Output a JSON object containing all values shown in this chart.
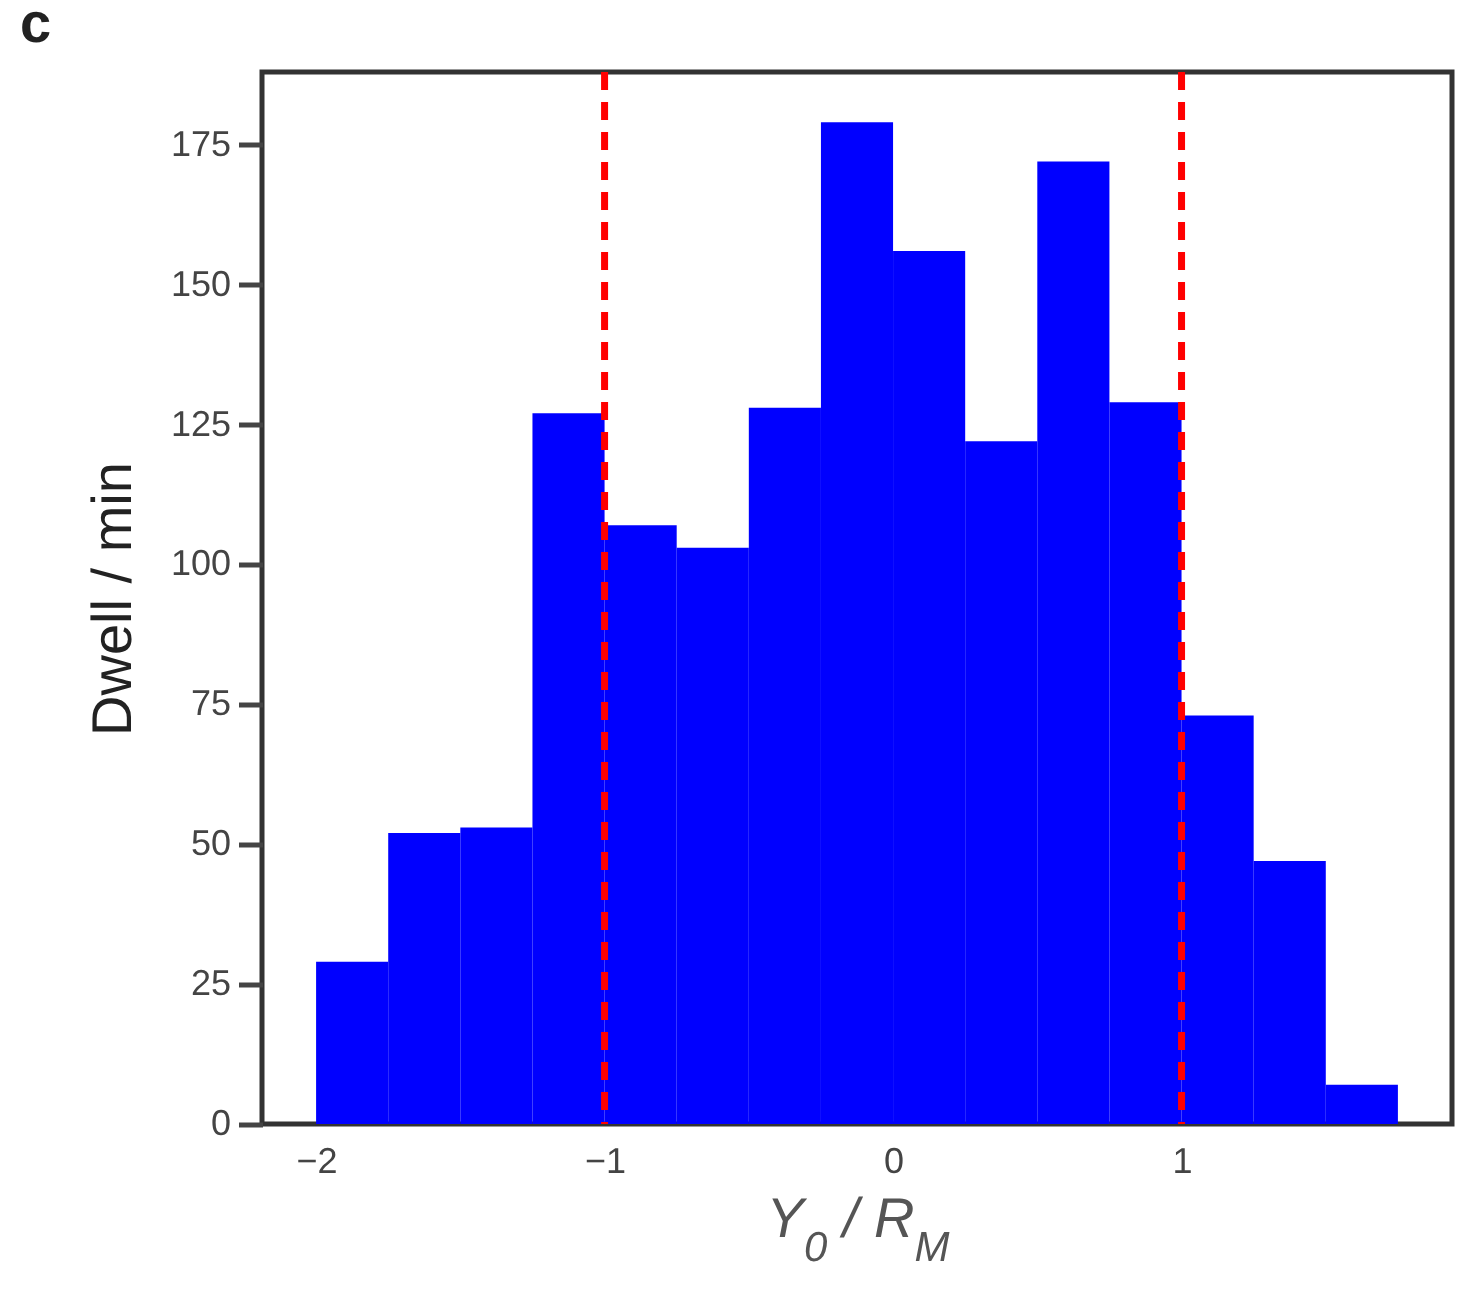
{
  "chart_data": {
    "type": "histogram",
    "xlabel": "Y$_{0}$ / R$_{M}$",
    "ylabel": "Dwell / min",
    "annotations": [
      "c"
    ],
    "bins": [
      -2,
      -1.75,
      -1.5,
      -1.25,
      -1,
      -0.75,
      -0.5,
      -0.25,
      0,
      0.25,
      0.5,
      0.75,
      1,
      1.25,
      1.5,
      1.75
    ],
    "values": [
      29,
      52,
      53,
      127,
      107,
      103,
      128,
      179,
      156,
      122,
      172,
      129,
      73,
      47,
      7
    ],
    "color": "#0000ff",
    "xlim": [
      -2.1875,
      1.9375
    ],
    "ylim": [
      0,
      188
    ],
    "xticks": [
      -2,
      -1,
      0,
      1
    ],
    "yticks": [
      0,
      25,
      50,
      75,
      100,
      125,
      150,
      175
    ],
    "ref_lines": [
      {
        "axis": "x",
        "value": -1,
        "color": "#ff0000",
        "line_style": "dashed"
      },
      {
        "axis": "x",
        "value": 1,
        "color": "#ff0000",
        "line_style": "dashed"
      }
    ],
    "grid": false
  }
}
